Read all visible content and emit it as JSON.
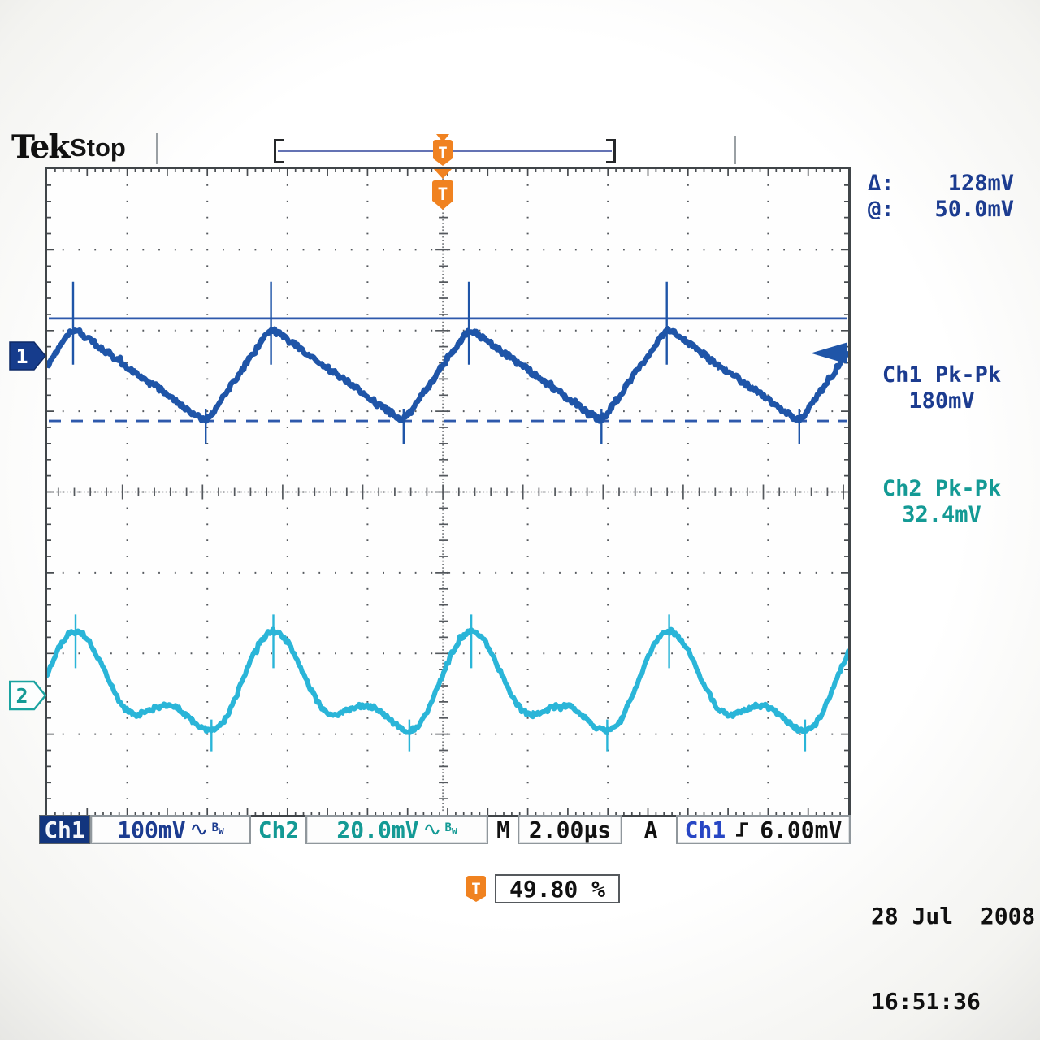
{
  "header": {
    "logo": "Tek",
    "status": "Stop"
  },
  "top_right_readout": {
    "delta_label": "Δ:",
    "delta_value": "128mV",
    "at_label": "@:",
    "at_value": "50.0mV"
  },
  "measurements": {
    "ch1": {
      "label": "Ch1 Pk-Pk",
      "value": "180mV"
    },
    "ch2": {
      "label": "Ch2 Pk-Pk",
      "value": "32.4mV"
    }
  },
  "channel_markers": {
    "ch1": "1",
    "ch2": "2"
  },
  "trigger_markers": {
    "top": "T",
    "screen": "T",
    "readout_icon": "T"
  },
  "status_bar": {
    "ch1_label": "Ch1",
    "ch1_scale": "100mV",
    "ch2_label": "Ch2",
    "ch2_scale": "20.0mV",
    "bw_limit": "B",
    "bw_limit_sub": "W",
    "main_time_label": "M",
    "main_time_scale": "2.00µs",
    "trigger_group_label": "A",
    "trigger_source": "Ch1",
    "trigger_level": "6.00mV"
  },
  "trigger_position_readout": "49.80 %",
  "datetime": {
    "date": "28 Jul  2008",
    "time": "16:51:36"
  },
  "colors": {
    "ch1_trace": "#1f55a8",
    "ch1_text": "#1c3c90",
    "ch2_trace": "#2ab5d8",
    "ch2_text": "#149a95",
    "trigger_orange": "#f08220",
    "cursor_blue": "#2e59ac",
    "graticule": "#54585d",
    "black": "#121212"
  },
  "chart_data": {
    "type": "line",
    "title": "Oscilloscope acquisition (stopped): Ch1 sawtooth ripple with switching spikes, Ch2 filtered ripple",
    "x_axis": {
      "units": "µs/div",
      "scale_us_per_div": 2.0,
      "divisions": 10
    },
    "y_axis": {
      "divisions": 8
    },
    "series": [
      {
        "name": "Ch1",
        "volts_per_div": "100mV",
        "pk_pk": "180mV",
        "waveform": "sawtooth with bidirectional switching transients at peaks and troughs",
        "first_peak_x_div": 0.325,
        "period_divisions": 2.47,
        "period_us": 4.94,
        "fall_fraction": 0.67,
        "peak_y_div": 1.97,
        "trough_y_div": 3.13,
        "position_marker_y_div": 2.32
      },
      {
        "name": "Ch2",
        "volts_per_div": "20.0mV",
        "pk_pk": "32.4mV",
        "waveform": "periodic ripple: peak, dip, small bump, deeper dip with transient, rise",
        "first_peak_x_div": 0.355,
        "period_divisions": 2.47,
        "profile_phase_ydiv": [
          [
            0,
            5.72
          ],
          [
            0.3,
            6.76
          ],
          [
            0.465,
            6.64
          ],
          [
            0.687,
            6.96
          ],
          [
            1,
            5.72
          ]
        ],
        "dip_spike_phase": 0.687,
        "position_marker_y_div": 6.52
      }
    ],
    "cursors": {
      "type": "horizontal",
      "solid_y_div": 1.85,
      "dashed_y_div": 3.12,
      "delta": "128mV",
      "at": "50.0mV"
    },
    "trigger": {
      "source": "Ch1",
      "slope": "rising",
      "level": "6.00mV",
      "level_arrow_y_div": 2.28,
      "position_pct": 49.8,
      "x_div": 4.94
    }
  }
}
